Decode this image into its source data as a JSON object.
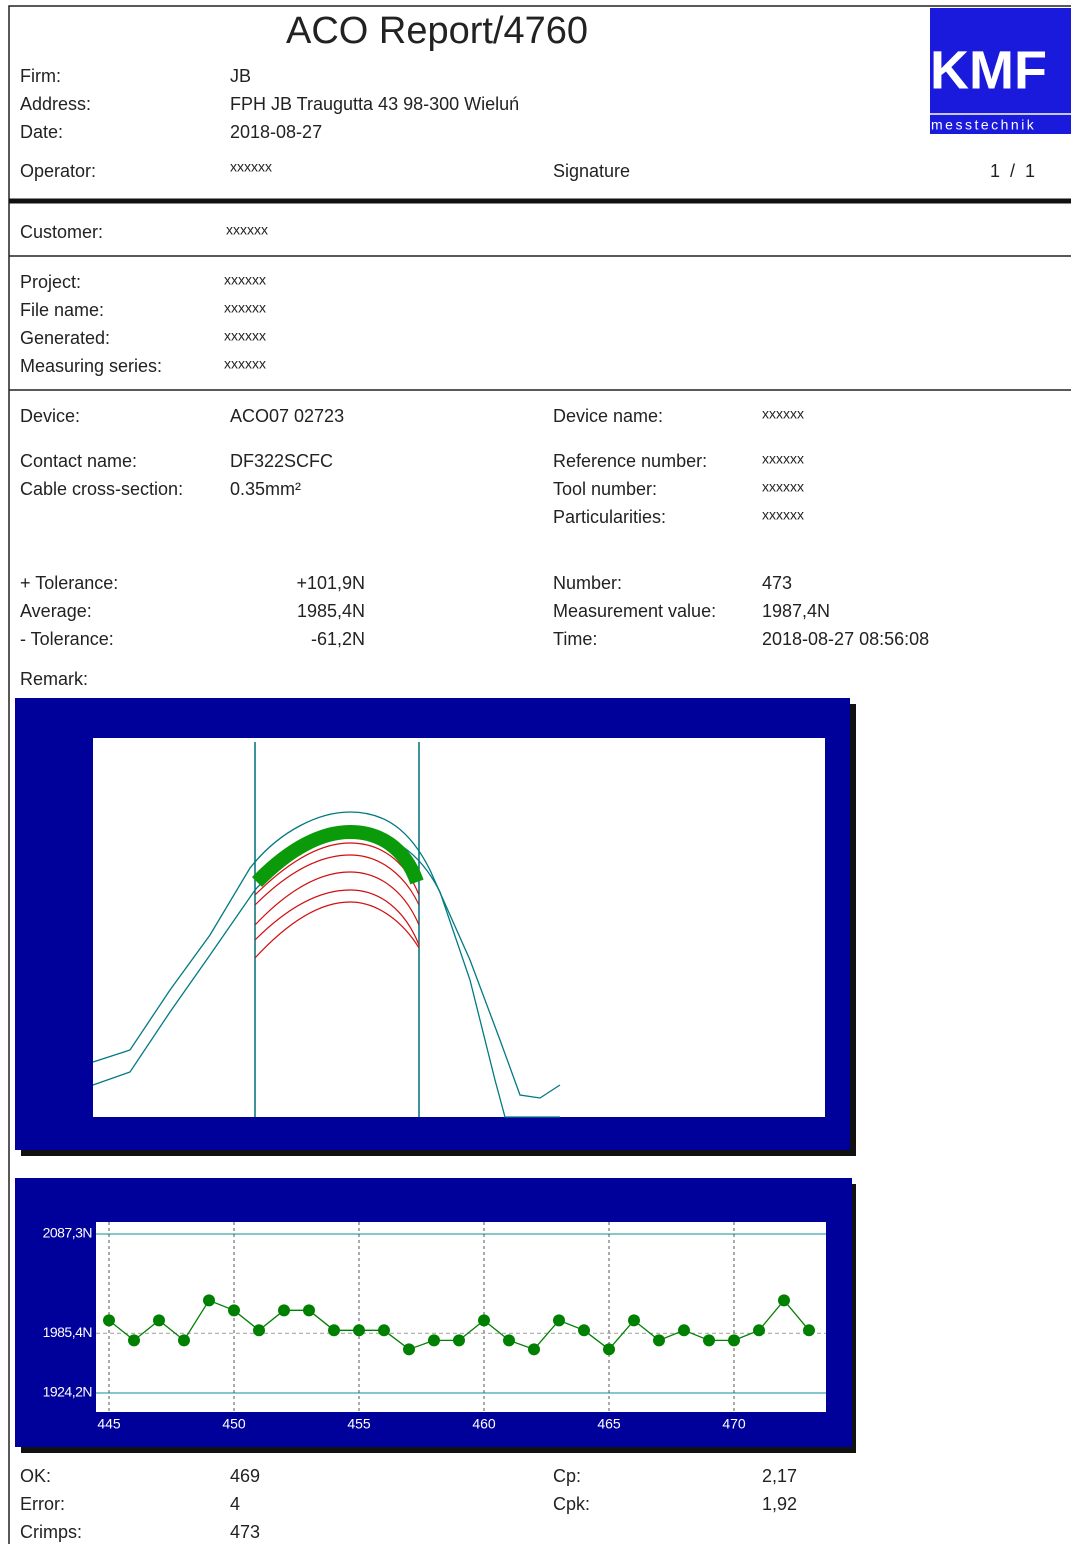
{
  "header": {
    "title": "ACO Report/4760",
    "logo": "KMF",
    "logo_subtitle": "messtechnik",
    "rows": [
      [
        "Firm:",
        "JB"
      ],
      [
        "Address:",
        "FPH JB Traugutta 43 98-300 Wieluń"
      ],
      [
        "Date:",
        "2018-08-27"
      ]
    ],
    "operator_label": "Operator:",
    "operator": "xxxxxx",
    "signature_label": "Signature",
    "page": "1  /  1"
  },
  "customer": {
    "label": "Customer:",
    "value": "xxxxxx"
  },
  "project": {
    "rows": [
      [
        "Project:",
        "xxxxxx"
      ],
      [
        "File name:",
        "xxxxxx"
      ],
      [
        "Generated:",
        "xxxxxx"
      ],
      [
        "Measuring series:",
        "xxxxxx"
      ]
    ]
  },
  "device": {
    "left": [
      [
        "Device:",
        "ACO07 02723"
      ],
      [
        "Contact name:",
        "DF322SCFC"
      ],
      [
        "Cable cross-section:",
        "0.35mm²"
      ]
    ],
    "right": [
      [
        "Device name:",
        "xxxxxx"
      ],
      [
        "Reference number:",
        "xxxxxx"
      ],
      [
        "Tool number:",
        "xxxxxx"
      ],
      [
        "Particularities:",
        "xxxxxx"
      ]
    ]
  },
  "tolerance": {
    "left": [
      [
        "+ Tolerance:",
        "+101,9N"
      ],
      [
        "Average:",
        "1985,4N"
      ],
      [
        "- Tolerance:",
        "-61,2N"
      ]
    ],
    "right": [
      [
        "Number:",
        "473"
      ],
      [
        "Measurement value:",
        "1987,4N"
      ],
      [
        "Time:",
        "2018-08-27 08:56:08"
      ]
    ],
    "remark_label": "Remark:"
  },
  "chart_data": {
    "type": "line",
    "x": [
      445,
      446,
      447,
      448,
      449,
      450,
      451,
      452,
      453,
      454,
      455,
      456,
      457,
      458,
      459,
      460,
      461,
      462,
      463,
      464,
      465,
      466,
      467,
      468,
      469,
      470,
      471,
      472,
      473
    ],
    "series": [
      {
        "color": "#008000",
        "values": [
          1998.7,
          1978.2,
          1998.7,
          1978.2,
          2019.2,
          2009.0,
          1988.5,
          2009.0,
          2009.0,
          1988.5,
          1988.5,
          1988.5,
          1969.0,
          1978.2,
          1978.2,
          1998.7,
          1978.2,
          1969.0,
          1998.7,
          1988.5,
          1969.0,
          1998.7,
          1978.2,
          1988.5,
          1978.2,
          1978.2,
          1988.5,
          2019.2,
          1988.5
        ]
      }
    ],
    "xlim": [
      444.48,
      473.68
    ],
    "xticks": [
      445,
      450,
      455,
      460,
      465,
      470
    ],
    "ylim": [
      1904.7,
      2099.6
    ],
    "yticks": [
      {
        "value": 1924.2,
        "label": "1924,2N"
      },
      {
        "value": 1985.4,
        "label": "1985,4N"
      },
      {
        "value": 2087.3,
        "label": "2087,3N"
      }
    ],
    "grid": true
  },
  "summary": {
    "left": [
      [
        "OK:",
        "469"
      ],
      [
        "Error:",
        "4"
      ],
      [
        "Crimps:",
        "473"
      ]
    ],
    "right": [
      [
        "Cp:",
        "2,17"
      ],
      [
        "Cpk:",
        "1,92"
      ]
    ]
  }
}
